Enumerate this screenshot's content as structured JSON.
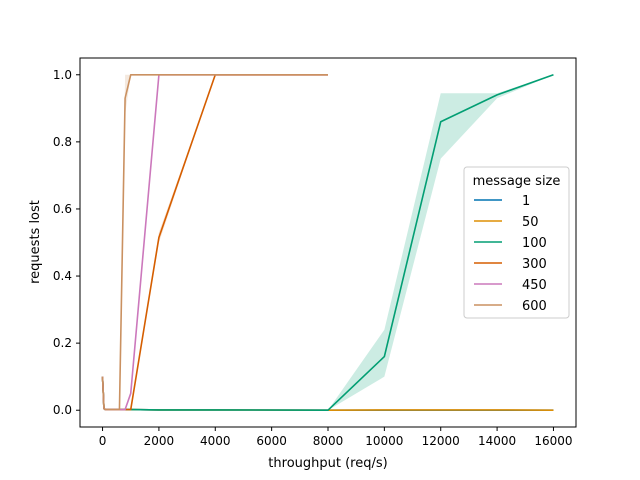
{
  "chart_data": {
    "type": "line",
    "title": "",
    "xlabel": "throughput (req/s)",
    "ylabel": "requests lost",
    "xlim": [
      -800,
      16800
    ],
    "ylim": [
      -0.05,
      1.05
    ],
    "xticks": [
      0,
      2000,
      4000,
      6000,
      8000,
      10000,
      12000,
      14000,
      16000
    ],
    "yticks": [
      0.0,
      0.2,
      0.4,
      0.6,
      0.8,
      1.0
    ],
    "xtick_labels": [
      "0",
      "2000",
      "4000",
      "6000",
      "8000",
      "10000",
      "12000",
      "14000",
      "16000"
    ],
    "ytick_labels": [
      "0.0",
      "0.2",
      "0.4",
      "0.6",
      "0.8",
      "1.0"
    ],
    "grid": false,
    "legend": {
      "title": "message size",
      "placement": "center-right"
    },
    "series": [
      {
        "name": "1",
        "color": "#0173b2",
        "points": [
          [
            0,
            0.1
          ],
          [
            50,
            0.005
          ],
          [
            100,
            0.002
          ],
          [
            500,
            0.002
          ],
          [
            1000,
            0.002
          ],
          [
            2000,
            0.001
          ],
          [
            4000,
            0.001
          ],
          [
            8000,
            0.0
          ],
          [
            10000,
            0.0
          ],
          [
            12000,
            0.0
          ],
          [
            14000,
            0.0
          ],
          [
            16000,
            0.0
          ]
        ]
      },
      {
        "name": "50",
        "color": "#de8f05",
        "points": [
          [
            0,
            0.1
          ],
          [
            50,
            0.005
          ],
          [
            100,
            0.002
          ],
          [
            500,
            0.002
          ],
          [
            1000,
            0.002
          ],
          [
            2000,
            0.001
          ],
          [
            4000,
            0.001
          ],
          [
            8000,
            0.0
          ],
          [
            10000,
            0.001
          ],
          [
            12000,
            0.001
          ],
          [
            14000,
            0.001
          ],
          [
            16000,
            0.0
          ]
        ]
      },
      {
        "name": "100",
        "color": "#029e73",
        "points": [
          [
            0,
            0.1
          ],
          [
            50,
            0.005
          ],
          [
            100,
            0.002
          ],
          [
            500,
            0.002
          ],
          [
            1000,
            0.002
          ],
          [
            2000,
            0.001
          ],
          [
            4000,
            0.001
          ],
          [
            8000,
            0.0
          ],
          [
            10000,
            0.16
          ],
          [
            12000,
            0.86
          ],
          [
            14000,
            0.94
          ],
          [
            16000,
            1.0
          ]
        ],
        "band": [
          [
            8000,
            0.0,
            0.0
          ],
          [
            10000,
            0.1,
            0.24
          ],
          [
            12000,
            0.75,
            0.945
          ],
          [
            14000,
            0.93,
            0.945
          ],
          [
            16000,
            1.0,
            1.0
          ]
        ]
      },
      {
        "name": "300",
        "color": "#d55e00",
        "points": [
          [
            0,
            0.1
          ],
          [
            50,
            0.005
          ],
          [
            100,
            0.002
          ],
          [
            500,
            0.002
          ],
          [
            1000,
            0.002
          ],
          [
            2000,
            0.515
          ],
          [
            4000,
            1.0
          ],
          [
            8000,
            1.0
          ]
        ],
        "band": [
          [
            1000,
            0.0,
            0.005
          ],
          [
            2000,
            0.5,
            0.53
          ],
          [
            4000,
            1.0,
            1.0
          ]
        ]
      },
      {
        "name": "450",
        "color": "#cc78bc",
        "points": [
          [
            0,
            0.1
          ],
          [
            50,
            0.005
          ],
          [
            100,
            0.002
          ],
          [
            500,
            0.002
          ],
          [
            800,
            0.002
          ],
          [
            1000,
            0.05
          ],
          [
            2000,
            1.0
          ],
          [
            4000,
            1.0
          ],
          [
            8000,
            1.0
          ]
        ]
      },
      {
        "name": "600",
        "color": "#ca9161",
        "points": [
          [
            0,
            0.1
          ],
          [
            50,
            0.005
          ],
          [
            100,
            0.002
          ],
          [
            600,
            0.002
          ],
          [
            800,
            0.93
          ],
          [
            1000,
            1.0
          ],
          [
            2000,
            1.0
          ],
          [
            4000,
            1.0
          ],
          [
            8000,
            1.0
          ]
        ],
        "band": [
          [
            600,
            0.0,
            0.01
          ],
          [
            800,
            0.88,
            1.0
          ],
          [
            1000,
            1.0,
            1.0
          ]
        ]
      }
    ]
  }
}
